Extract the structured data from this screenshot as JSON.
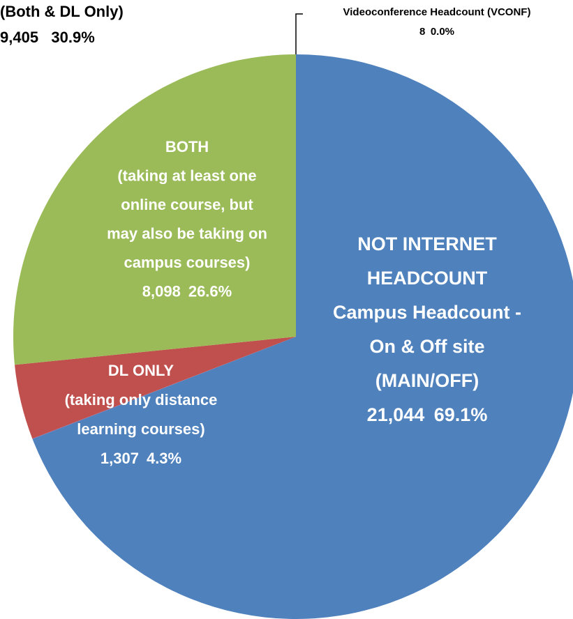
{
  "chart_data": {
    "type": "pie",
    "labels": [
      [
        "NOT INTERNET",
        "HEADCOUNT",
        "Campus Headcount -",
        "On & Off site",
        "(MAIN/OFF)"
      ],
      [
        "Videoconference Headcount (VCONF)"
      ],
      [
        "DL ONLY",
        "(taking only distance",
        "learning courses)"
      ],
      [
        "BOTH",
        "(taking at least one",
        "online course, but",
        "may also be taking on",
        "campus courses)"
      ]
    ],
    "values": [
      21044,
      8,
      1307,
      8098
    ],
    "value_labels": [
      "21,044",
      "8",
      "1,307",
      "8,098"
    ],
    "percents": [
      69.1,
      0.0,
      4.3,
      26.6
    ],
    "percent_labels": [
      "69.1%",
      "0.0%",
      "4.3%",
      "26.6%"
    ],
    "colors": [
      "#4f81bd",
      "#8064a2",
      "#c0504d",
      "#9bbb59"
    ],
    "annotations": [
      "(Both & DL Only)",
      "9,405   30.9%"
    ]
  }
}
